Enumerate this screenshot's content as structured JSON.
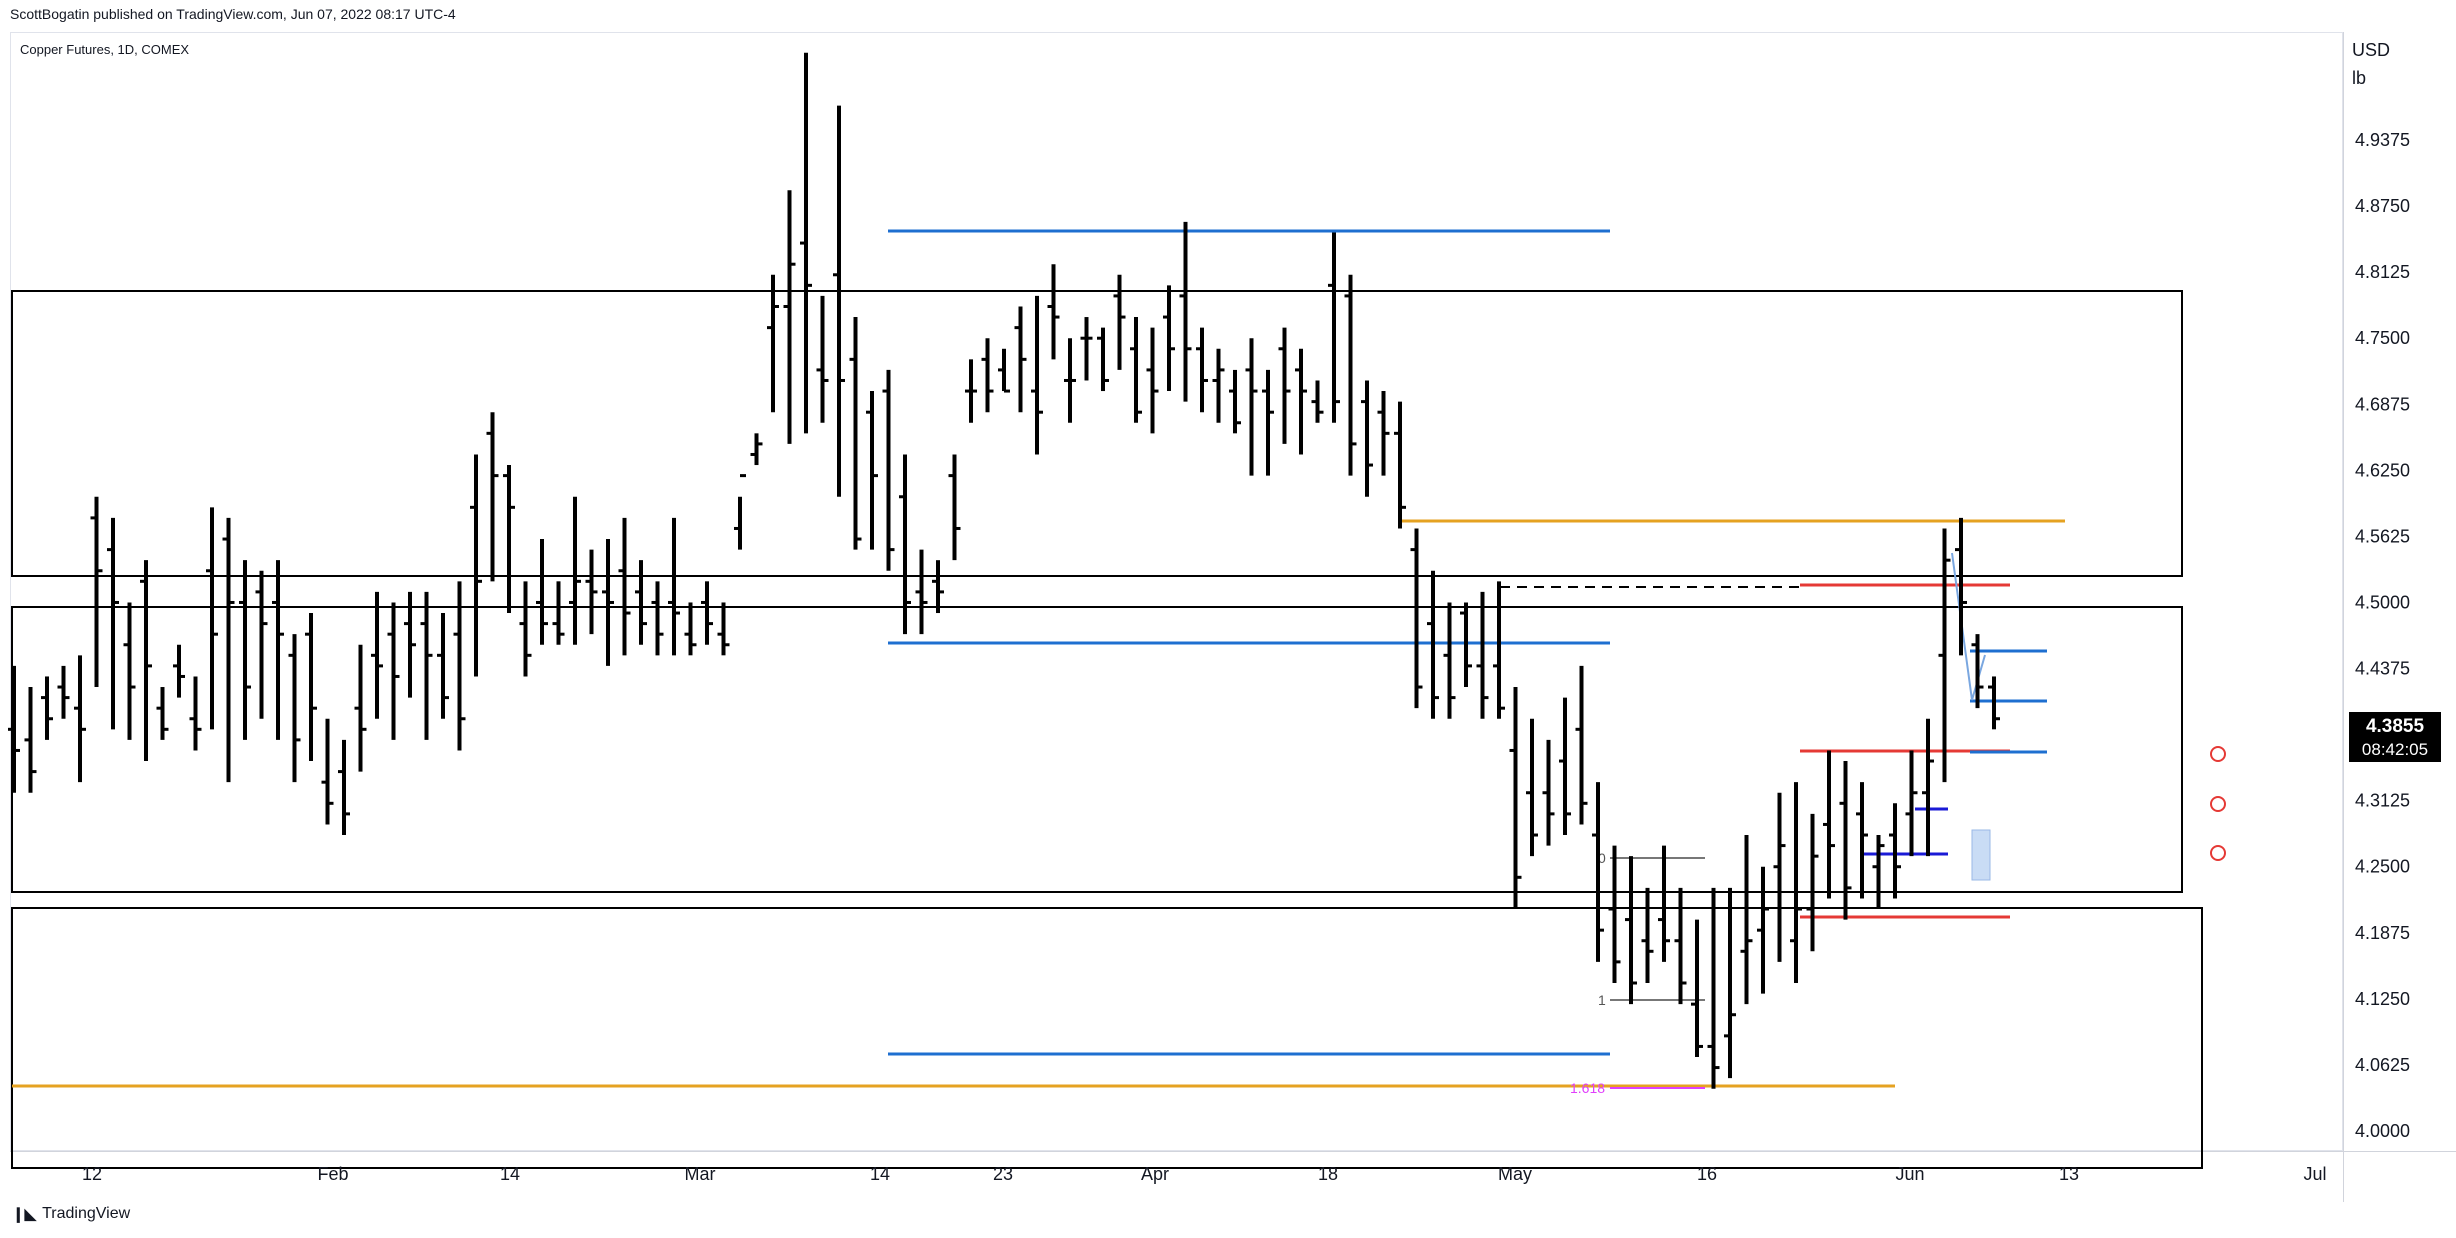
{
  "publisher_line": "ScottBogatin published on TradingView.com, Jun 07, 2022 08:17 UTC-4",
  "symbol_line": "Copper Futures, 1D, COMEX",
  "currency": "USD",
  "unit": "lb",
  "footer": {
    "logo_text": "TradingView",
    "logo_icon": "tradingview-logo-icon"
  },
  "colors": {
    "bar": "#000000",
    "blue_line": "#1e6fd0",
    "orange_line": "#e5a221",
    "red_line": "#e53935",
    "navy_line": "#1a1ad6",
    "fib_text": "#e040fb",
    "price_badge_bg": "#000000",
    "price_badge_text": "#ffffff",
    "circle_marker": "#e53935",
    "range_box_fill": "#c9dcf5"
  },
  "price_badge": {
    "price": "4.3855",
    "countdown": "08:42:05"
  },
  "fib_labels": [
    "0",
    "1",
    "1.618"
  ],
  "chart_data": {
    "type": "ohlc",
    "title": "Copper Futures, 1D, COMEX",
    "x_ticks": [
      "12",
      "Feb",
      "14",
      "Mar",
      "14",
      "23",
      "Apr",
      "18",
      "May",
      "16",
      "Jun",
      "13",
      "Jul"
    ],
    "y_ticks": [
      "4.9375",
      "4.8750",
      "4.8125",
      "4.7500",
      "4.6875",
      "4.6250",
      "4.5625",
      "4.5000",
      "4.4375",
      "4.3750",
      "4.3125",
      "4.2500",
      "4.1875",
      "4.1250",
      "4.0625",
      "4.0000"
    ],
    "ylim": [
      3.97,
      5.02
    ],
    "bars_high": [
      4.44,
      4.42,
      4.43,
      4.44,
      4.45,
      4.6,
      4.58,
      4.5,
      4.54,
      4.42,
      4.46,
      4.43,
      4.59,
      4.58,
      4.54,
      4.53,
      4.54,
      4.47,
      4.49,
      4.39,
      4.37,
      4.46,
      4.51,
      4.5,
      4.51,
      4.51,
      4.49,
      4.52,
      4.64,
      4.68,
      4.63,
      4.52,
      4.56,
      4.52,
      4.6,
      4.55,
      4.56,
      4.58,
      4.54,
      4.52,
      4.58,
      4.5,
      4.52,
      4.5,
      4.6,
      4.66,
      4.81,
      4.89,
      5.02,
      4.79,
      4.97,
      4.77,
      4.7,
      4.72,
      4.64,
      4.55,
      4.54,
      4.64,
      4.73,
      4.75,
      4.74,
      4.78,
      4.79,
      4.82,
      4.75,
      4.77,
      4.76,
      4.81,
      4.77,
      4.76,
      4.8,
      4.86,
      4.76,
      4.74,
      4.72,
      4.75,
      4.72,
      4.76,
      4.74,
      4.71,
      4.85,
      4.81,
      4.71,
      4.7,
      4.69,
      4.57,
      4.53,
      4.5,
      4.5,
      4.51,
      4.52,
      4.42,
      4.39,
      4.37,
      4.41,
      4.44,
      4.33,
      4.27,
      4.26,
      4.23,
      4.27,
      4.23,
      4.2,
      4.23,
      4.23,
      4.28,
      4.25,
      4.32,
      4.33,
      4.3,
      4.36,
      4.35,
      4.33,
      4.28,
      4.31,
      4.36,
      4.39,
      4.57,
      4.58,
      4.47,
      4.43
    ],
    "bars_low": [
      4.32,
      4.32,
      4.37,
      4.39,
      4.33,
      4.42,
      4.38,
      4.37,
      4.35,
      4.37,
      4.41,
      4.36,
      4.38,
      4.33,
      4.37,
      4.39,
      4.37,
      4.33,
      4.35,
      4.29,
      4.28,
      4.34,
      4.39,
      4.37,
      4.41,
      4.37,
      4.39,
      4.36,
      4.43,
      4.52,
      4.49,
      4.43,
      4.46,
      4.46,
      4.46,
      4.47,
      4.44,
      4.45,
      4.46,
      4.45,
      4.45,
      4.45,
      4.46,
      4.45,
      4.55,
      4.63,
      4.68,
      4.65,
      4.66,
      4.67,
      4.6,
      4.55,
      4.55,
      4.53,
      4.47,
      4.47,
      4.49,
      4.54,
      4.67,
      4.68,
      4.7,
      4.68,
      4.64,
      4.73,
      4.67,
      4.71,
      4.7,
      4.72,
      4.67,
      4.66,
      4.7,
      4.69,
      4.68,
      4.67,
      4.66,
      4.62,
      4.62,
      4.65,
      4.64,
      4.67,
      4.67,
      4.62,
      4.6,
      4.62,
      4.57,
      4.4,
      4.39,
      4.39,
      4.42,
      4.39,
      4.39,
      4.21,
      4.26,
      4.27,
      4.28,
      4.29,
      4.16,
      4.14,
      4.12,
      4.14,
      4.16,
      4.12,
      4.07,
      4.04,
      4.05,
      4.12,
      4.13,
      4.16,
      4.14,
      4.17,
      4.22,
      4.2,
      4.22,
      4.21,
      4.22,
      4.26,
      4.26,
      4.33,
      4.45,
      4.4,
      4.38
    ],
    "bars_open": [
      4.38,
      4.37,
      4.41,
      4.42,
      4.4,
      4.58,
      4.55,
      4.46,
      4.52,
      4.4,
      4.44,
      4.39,
      4.53,
      4.56,
      4.5,
      4.51,
      4.5,
      4.45,
      4.47,
      4.33,
      4.34,
      4.4,
      4.45,
      4.47,
      4.48,
      4.48,
      4.45,
      4.47,
      4.59,
      4.66,
      4.62,
      4.48,
      4.5,
      4.48,
      4.5,
      4.52,
      4.51,
      4.53,
      4.51,
      4.5,
      4.5,
      4.47,
      4.5,
      4.47,
      4.57,
      4.64,
      4.76,
      4.78,
      4.84,
      4.72,
      4.81,
      4.73,
      4.68,
      4.7,
      4.6,
      4.51,
      4.52,
      4.62,
      4.7,
      4.73,
      4.72,
      4.76,
      4.7,
      4.78,
      4.71,
      4.75,
      4.75,
      4.79,
      4.74,
      4.72,
      4.77,
      4.79,
      4.74,
      4.71,
      4.7,
      4.72,
      4.7,
      4.74,
      4.72,
      4.69,
      4.8,
      4.79,
      4.69,
      4.68,
      4.66,
      4.55,
      4.48,
      4.45,
      4.49,
      4.44,
      4.44,
      4.36,
      4.32,
      4.32,
      4.35,
      4.38,
      4.28,
      4.21,
      4.2,
      4.18,
      4.2,
      4.18,
      4.12,
      4.08,
      4.09,
      4.17,
      4.19,
      4.25,
      4.18,
      4.21,
      4.29,
      4.31,
      4.3,
      4.25,
      4.28,
      4.3,
      4.32,
      4.45,
      4.55,
      4.46,
      4.42
    ],
    "bars_close": [
      4.36,
      4.34,
      4.39,
      4.41,
      4.38,
      4.53,
      4.5,
      4.42,
      4.44,
      4.38,
      4.43,
      4.38,
      4.47,
      4.5,
      4.42,
      4.48,
      4.47,
      4.37,
      4.4,
      4.31,
      4.3,
      4.38,
      4.44,
      4.43,
      4.46,
      4.45,
      4.41,
      4.39,
      4.52,
      4.62,
      4.59,
      4.45,
      4.48,
      4.47,
      4.52,
      4.51,
      4.5,
      4.49,
      4.48,
      4.47,
      4.49,
      4.46,
      4.48,
      4.46,
      4.62,
      4.65,
      4.78,
      4.82,
      4.8,
      4.71,
      4.71,
      4.56,
      4.62,
      4.55,
      4.5,
      4.5,
      4.51,
      4.57,
      4.7,
      4.7,
      4.7,
      4.73,
      4.68,
      4.77,
      4.71,
      4.75,
      4.71,
      4.77,
      4.68,
      4.7,
      4.74,
      4.74,
      4.71,
      4.72,
      4.67,
      4.7,
      4.68,
      4.7,
      4.7,
      4.68,
      4.69,
      4.65,
      4.63,
      4.66,
      4.59,
      4.42,
      4.41,
      4.41,
      4.44,
      4.41,
      4.4,
      4.24,
      4.28,
      4.3,
      4.3,
      4.31,
      4.19,
      4.16,
      4.14,
      4.17,
      4.18,
      4.14,
      4.08,
      4.06,
      4.11,
      4.18,
      4.21,
      4.27,
      4.21,
      4.26,
      4.27,
      4.23,
      4.28,
      4.27,
      4.25,
      4.32,
      4.35,
      4.54,
      4.5,
      4.42,
      4.39
    ]
  }
}
